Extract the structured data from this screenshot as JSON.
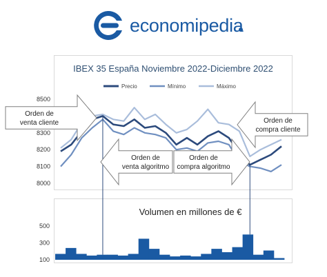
{
  "brand": {
    "name": "economipedia",
    "color": "#1a5aa3",
    "icon": "e-logo-icon"
  },
  "chart_data": [
    {
      "type": "line",
      "title": "IBEX 35 España Noviembre 2022-Diciembre 2022",
      "xlabel": "",
      "ylabel": "",
      "ylim": [
        8000,
        8500
      ],
      "yticks": [
        8000,
        8100,
        8200,
        8300,
        8400,
        8500
      ],
      "grid": false,
      "legend_position": "top",
      "series": [
        {
          "name": "Precio",
          "color": "#2c4a7c",
          "values": [
            8190,
            8230,
            8310,
            8380,
            8400,
            8350,
            8340,
            8380,
            8330,
            8340,
            8300,
            8230,
            8270,
            8230,
            8280,
            8310,
            8270,
            8180,
            8110,
            8140,
            8170,
            8220
          ]
        },
        {
          "name": "Mínimo",
          "color": "#6f8fc0",
          "values": [
            8100,
            8170,
            8270,
            8330,
            8380,
            8310,
            8290,
            8330,
            8300,
            8290,
            8270,
            8200,
            8210,
            8190,
            8240,
            8250,
            8230,
            8130,
            8100,
            8090,
            8070,
            8110
          ]
        },
        {
          "name": "Máximo",
          "color": "#a9bddb",
          "values": [
            8210,
            8260,
            8360,
            8400,
            8410,
            8380,
            8370,
            8450,
            8380,
            8410,
            8350,
            8300,
            8320,
            8370,
            8440,
            8360,
            8350,
            8310,
            8160,
            8200,
            8230,
            8260
          ]
        }
      ],
      "annotations": [
        {
          "text": "Orden de venta cliente",
          "direction": "right"
        },
        {
          "text": "Orden de venta algoritmo",
          "direction": "left"
        },
        {
          "text": "Orden de compra algoritmo",
          "direction": "right"
        },
        {
          "text": "Orden de compra cliente",
          "direction": "left"
        }
      ]
    },
    {
      "type": "area",
      "title": "Volumen en millones de €",
      "ylim": [
        100,
        550
      ],
      "yticks": [
        100,
        300,
        500
      ],
      "color": "#1a5aa3",
      "values": [
        170,
        240,
        170,
        150,
        160,
        160,
        150,
        170,
        350,
        230,
        160,
        140,
        150,
        140,
        170,
        230,
        190,
        250,
        400,
        160,
        210,
        120
      ]
    }
  ]
}
